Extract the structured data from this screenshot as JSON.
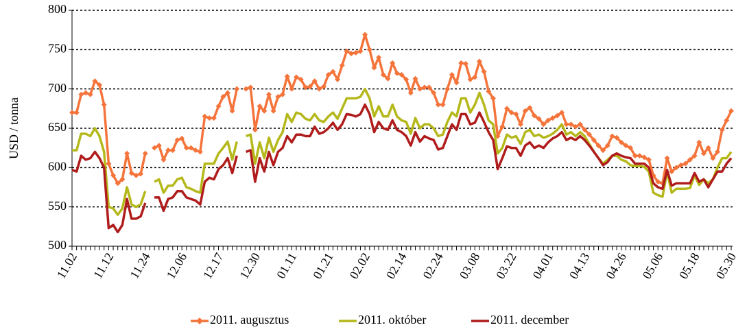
{
  "chart_data": {
    "type": "line",
    "ylabel": "USD / tonna",
    "ylim": [
      500,
      800
    ],
    "yticks": [
      500,
      550,
      600,
      650,
      700,
      750,
      800
    ],
    "grid": true,
    "legend": "bottom",
    "categories": [
      "11.02",
      null,
      null,
      null,
      null,
      null,
      null,
      null,
      "11.12",
      null,
      null,
      null,
      null,
      null,
      null,
      null,
      "11.24",
      null,
      null,
      null,
      null,
      null,
      null,
      null,
      "12.06",
      null,
      null,
      null,
      null,
      null,
      null,
      null,
      "12.17",
      null,
      null,
      null,
      null,
      null,
      null,
      null,
      "12.30",
      null,
      null,
      null,
      null,
      null,
      null,
      null,
      "01.11",
      null,
      null,
      null,
      null,
      null,
      null,
      null,
      "01.21",
      null,
      null,
      null,
      null,
      null,
      null,
      null,
      "02.02",
      null,
      null,
      null,
      null,
      null,
      null,
      null,
      "02.14",
      null,
      null,
      null,
      null,
      null,
      null,
      null,
      "02.24",
      null,
      null,
      null,
      null,
      null,
      null,
      null,
      "03.08",
      null,
      null,
      null,
      null,
      null,
      null,
      null,
      "03.22",
      null,
      null,
      null,
      null,
      null,
      null,
      null,
      "04.01",
      null,
      null,
      null,
      null,
      null,
      null,
      null,
      "04.13",
      null,
      null,
      null,
      null,
      null,
      null,
      null,
      "04.26",
      null,
      null,
      null,
      null,
      null,
      null,
      null,
      "05.06",
      null,
      null,
      null,
      null,
      null,
      null,
      null,
      "05.18",
      null,
      null,
      null,
      null,
      null,
      null,
      null,
      "05.30"
    ],
    "series": [
      {
        "name": "2011. augusztus",
        "color": "#f4743b",
        "marker": "diamond",
        "values": [
          670,
          670,
          693,
          695,
          693,
          710,
          705,
          680,
          605,
          590,
          580,
          585,
          618,
          593,
          590,
          592,
          618,
          null,
          625,
          628,
          610,
          622,
          622,
          635,
          637,
          625,
          625,
          622,
          620,
          665,
          663,
          663,
          678,
          690,
          695,
          672,
          700,
          null,
          700,
          702,
          648,
          678,
          672,
          693,
          672,
          690,
          693,
          716,
          700,
          715,
          712,
          702,
          703,
          710,
          700,
          703,
          718,
          722,
          712,
          730,
          748,
          745,
          746,
          748,
          769,
          750,
          727,
          740,
          718,
          713,
          733,
          720,
          718,
          712,
          695,
          713,
          700,
          702,
          702,
          695,
          680,
          680,
          700,
          718,
          708,
          733,
          732,
          712,
          715,
          735,
          722,
          697,
          688,
          640,
          652,
          675,
          670,
          668,
          655,
          672,
          676,
          666,
          662,
          655,
          660,
          663,
          666,
          670,
          655,
          655,
          652,
          655,
          648,
          642,
          635,
          628,
          622,
          628,
          640,
          638,
          632,
          628,
          625,
          615,
          615,
          613,
          610,
          590,
          582,
          580,
          612,
          595,
          600,
          603,
          605,
          610,
          615,
          632,
          618,
          625,
          612,
          620,
          648,
          660,
          672
        ]
      },
      {
        "name": "2011. október",
        "color": "#b5b81a",
        "values": [
          622,
          622,
          643,
          643,
          640,
          650,
          640,
          620,
          550,
          548,
          540,
          548,
          575,
          553,
          550,
          553,
          570,
          null,
          582,
          585,
          568,
          577,
          577,
          585,
          587,
          575,
          573,
          570,
          568,
          605,
          605,
          605,
          618,
          625,
          633,
          610,
          633,
          null,
          640,
          642,
          605,
          632,
          612,
          638,
          620,
          635,
          645,
          668,
          658,
          670,
          668,
          662,
          660,
          668,
          660,
          658,
          665,
          670,
          662,
          675,
          688,
          688,
          688,
          690,
          700,
          688,
          665,
          678,
          665,
          665,
          680,
          665,
          660,
          658,
          643,
          663,
          650,
          655,
          655,
          650,
          640,
          642,
          658,
          670,
          665,
          688,
          688,
          670,
          680,
          695,
          680,
          660,
          655,
          618,
          625,
          642,
          638,
          640,
          630,
          645,
          648,
          640,
          642,
          638,
          640,
          643,
          648,
          655,
          642,
          645,
          640,
          645,
          640,
          630,
          620,
          612,
          605,
          610,
          615,
          615,
          610,
          608,
          603,
          602,
          602,
          601,
          595,
          568,
          565,
          563,
          595,
          568,
          573,
          573,
          573,
          574,
          590,
          578,
          585,
          580,
          585,
          600,
          612,
          612,
          620
        ]
      },
      {
        "name": "2011. december",
        "color": "#b01c1c",
        "values": [
          597,
          595,
          615,
          610,
          612,
          620,
          612,
          600,
          523,
          527,
          518,
          527,
          560,
          535,
          535,
          538,
          555,
          null,
          562,
          562,
          545,
          560,
          562,
          570,
          570,
          562,
          560,
          558,
          553,
          582,
          587,
          585,
          598,
          603,
          612,
          593,
          615,
          null,
          620,
          622,
          582,
          612,
          595,
          620,
          603,
          620,
          625,
          640,
          632,
          642,
          642,
          640,
          640,
          652,
          643,
          645,
          650,
          657,
          648,
          655,
          668,
          667,
          665,
          668,
          680,
          668,
          645,
          658,
          650,
          648,
          660,
          648,
          645,
          640,
          628,
          645,
          633,
          640,
          637,
          635,
          623,
          625,
          640,
          655,
          648,
          668,
          668,
          655,
          657,
          670,
          658,
          645,
          635,
          598,
          612,
          627,
          625,
          625,
          615,
          628,
          632,
          625,
          628,
          625,
          632,
          637,
          640,
          645,
          635,
          638,
          635,
          640,
          635,
          628,
          620,
          612,
          603,
          607,
          615,
          618,
          615,
          613,
          612,
          605,
          605,
          605,
          600,
          580,
          575,
          573,
          597,
          577,
          580,
          580,
          580,
          580,
          593,
          582,
          585,
          575,
          585,
          595,
          595,
          605,
          612
        ]
      }
    ]
  }
}
